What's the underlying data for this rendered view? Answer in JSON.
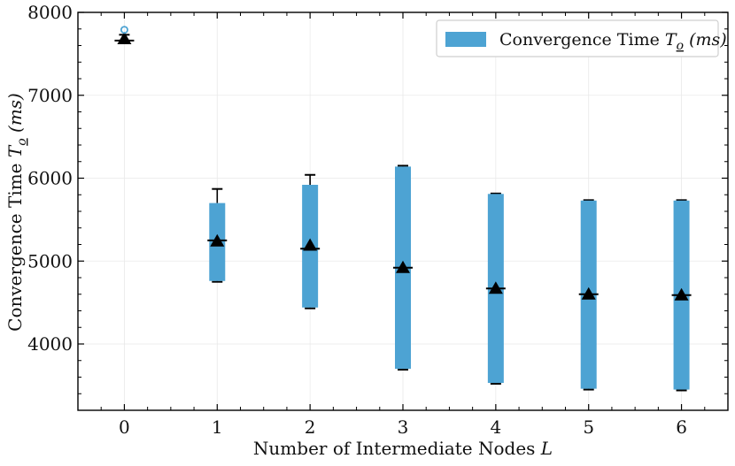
{
  "chart_data": {
    "type": "box",
    "xlabel": "Number of Intermediate Nodes",
    "xlabel_var": "L",
    "ylabel": "Convergence Time",
    "ylabel_var": "T",
    "ylabel_sub": "o",
    "ylabel_unit": "(ms)",
    "legend_label": "Convergence Time",
    "legend_var": "T",
    "legend_sub": "o",
    "legend_unit": "(ms)",
    "legend_position": "top-right",
    "xlim": [
      -0.5,
      6.5
    ],
    "ylim": [
      3200,
      8000
    ],
    "x_ticks": [
      "0",
      "1",
      "2",
      "3",
      "4",
      "5",
      "6"
    ],
    "y_ticks": [
      "4000",
      "5000",
      "6000",
      "7000",
      "8000"
    ],
    "y_tick_values": [
      4000,
      5000,
      6000,
      7000,
      8000
    ],
    "grid": true,
    "color": "#4da3d3",
    "boxes": [
      {
        "x": 0,
        "whislo": 7660,
        "q1": 7660,
        "med": 7660,
        "q3": 7660,
        "whishi": 7730,
        "mean": 7680,
        "fliers": [
          7790
        ]
      },
      {
        "x": 1,
        "whislo": 4750,
        "q1": 4760,
        "med": 5250,
        "q3": 5700,
        "whishi": 5870,
        "mean": 5240,
        "fliers": []
      },
      {
        "x": 2,
        "whislo": 4430,
        "q1": 4440,
        "med": 5150,
        "q3": 5920,
        "whishi": 6040,
        "mean": 5190,
        "fliers": []
      },
      {
        "x": 3,
        "whislo": 3690,
        "q1": 3700,
        "med": 4920,
        "q3": 6140,
        "whishi": 6150,
        "mean": 4920,
        "fliers": []
      },
      {
        "x": 4,
        "whislo": 3520,
        "q1": 3530,
        "med": 4670,
        "q3": 5810,
        "whishi": 5815,
        "mean": 4670,
        "fliers": []
      },
      {
        "x": 5,
        "whislo": 3450,
        "q1": 3460,
        "med": 4600,
        "q3": 5730,
        "whishi": 5735,
        "mean": 4600,
        "fliers": []
      },
      {
        "x": 6,
        "whislo": 3440,
        "q1": 3450,
        "med": 4590,
        "q3": 5730,
        "whishi": 5735,
        "mean": 4590,
        "fliers": []
      }
    ]
  }
}
